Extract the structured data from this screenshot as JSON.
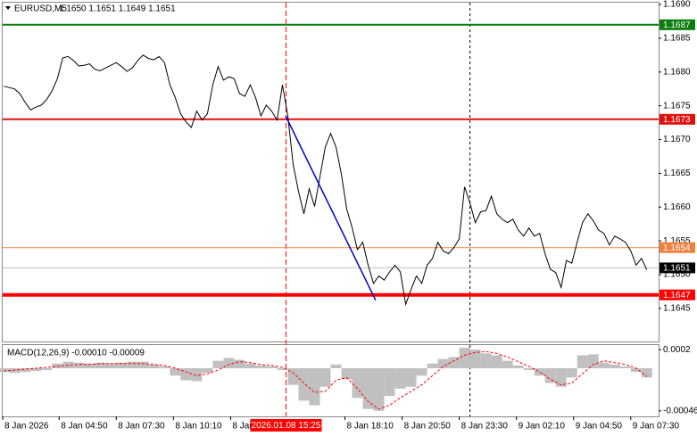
{
  "chart_data": [
    {
      "type": "line",
      "title": "EURUSD,M5",
      "quote": "1.1650 1.1651 1.1649 1.1651",
      "color": "#000000",
      "x": [
        2.25,
        2.5,
        2.75,
        3,
        3.25,
        3.5,
        3.75,
        4,
        4.25,
        4.5,
        4.75,
        5,
        5.25,
        5.5,
        5.75,
        6,
        6.25,
        6.5,
        6.75,
        7,
        7.25,
        7.5,
        7.75,
        8,
        8.25,
        8.5,
        8.75,
        9,
        9.25,
        9.5,
        9.75,
        10,
        10.25,
        10.5,
        10.75,
        11,
        11.25,
        11.5,
        11.75,
        12,
        12.25,
        12.5,
        12.75,
        13,
        13.25,
        13.5,
        13.75,
        14,
        14.25,
        14.5,
        14.75,
        15,
        15.25,
        15.5,
        15.75,
        16,
        16.25,
        16.5,
        16.75,
        17,
        17.25,
        17.5,
        17.75,
        18,
        18.25,
        18.5,
        18.75,
        19,
        19.25,
        19.5,
        19.75,
        20,
        20.25,
        20.5,
        20.75,
        21,
        21.25,
        21.5,
        21.75,
        22,
        22.25,
        22.5,
        22.75,
        23,
        23.25,
        23.5,
        23.75,
        24,
        24.25,
        24.5,
        24.75,
        25,
        25.25,
        25.5,
        25.75,
        26,
        26.25,
        26.5,
        26.75,
        27,
        27.25,
        27.5,
        27.75,
        28,
        28.25,
        28.5,
        28.75,
        29,
        29.25,
        29.5,
        29.75,
        30,
        30.25,
        30.5,
        30.75,
        31,
        31.25,
        31.5,
        31.75,
        32,
        32.25
      ],
      "values": [
        1.16779,
        1.16777,
        1.16775,
        1.16768,
        1.16755,
        1.16744,
        1.16748,
        1.16751,
        1.16759,
        1.16772,
        1.1679,
        1.16821,
        1.16823,
        1.16817,
        1.16809,
        1.1681,
        1.16812,
        1.16804,
        1.16802,
        1.16806,
        1.1681,
        1.16814,
        1.16808,
        1.16801,
        1.16806,
        1.16817,
        1.16825,
        1.1682,
        1.16818,
        1.16823,
        1.16814,
        1.16781,
        1.16762,
        1.16738,
        1.16726,
        1.16718,
        1.16742,
        1.16729,
        1.16738,
        1.16781,
        1.16808,
        1.16788,
        1.16793,
        1.1679,
        1.16768,
        1.16764,
        1.16781,
        1.16762,
        1.16735,
        1.16751,
        1.16742,
        1.16729,
        1.16781,
        1.16735,
        1.16663,
        1.16623,
        1.1659,
        1.16627,
        1.16601,
        1.16645,
        1.16689,
        1.16709,
        1.16689,
        1.16649,
        1.16597,
        1.1657,
        1.16537,
        1.16548,
        1.16514,
        1.16487,
        1.16498,
        1.16492,
        1.16504,
        1.16514,
        1.16504,
        1.16456,
        1.16478,
        1.16498,
        1.16487,
        1.16514,
        1.16524,
        1.16548,
        1.16535,
        1.16531,
        1.1654,
        1.16553,
        1.1663,
        1.16606,
        1.16577,
        1.16593,
        1.16595,
        1.16616,
        1.1659,
        1.16582,
        1.16577,
        1.16582,
        1.16566,
        1.16557,
        1.16569,
        1.16557,
        1.16561,
        1.16531,
        1.16508,
        1.16503,
        1.16481,
        1.16521,
        1.16517,
        1.16548,
        1.16577,
        1.1659,
        1.1658,
        1.16566,
        1.16561,
        1.16544,
        1.16557,
        1.16553,
        1.16548,
        1.16535,
        1.16514,
        1.16524,
        1.16507
      ],
      "xlim": [
        2.2,
        32.8
      ],
      "ylim": [
        1.16401,
        1.16904
      ],
      "yticks": [
        {
          "value": 1.169,
          "label": "1.1690"
        },
        {
          "value": 1.1685,
          "label": "1.1685"
        },
        {
          "value": 1.168,
          "label": "1.1680"
        },
        {
          "value": 1.1675,
          "label": "1.1675"
        },
        {
          "value": 1.167,
          "label": "1.1670"
        },
        {
          "value": 1.1665,
          "label": "1.1665"
        },
        {
          "value": 1.166,
          "label": "1.1660"
        },
        {
          "value": 1.1655,
          "label": "1.1655"
        },
        {
          "value": 1.165,
          "label": "1.1650"
        },
        {
          "value": 1.1645,
          "label": "1.1645"
        }
      ],
      "xticks": [
        {
          "value": 2.2,
          "label": "8 Jan 2026"
        },
        {
          "value": 4.8333,
          "label": "8 Jan 04:50"
        },
        {
          "value": 7.5,
          "label": "8 Jan 07:30"
        },
        {
          "value": 10.1667,
          "label": "8 Jan 10:10"
        },
        {
          "value": 12.8333,
          "label": "8 Jan 12:50"
        },
        {
          "value": 18.1667,
          "label": "8 Jan 18:10"
        },
        {
          "value": 20.8333,
          "label": "8 Jan 20:50"
        },
        {
          "value": 23.5,
          "label": "8 Jan 23:30"
        },
        {
          "value": 26.1667,
          "label": "9 Jan 02:10"
        },
        {
          "value": 28.8333,
          "label": "9 Jan 04:50"
        },
        {
          "value": 31.5,
          "label": "9 Jan 07:30"
        }
      ],
      "levels": [
        {
          "value": 1.1687,
          "color": "#0a7d0a",
          "style": "thick"
        },
        {
          "value": 1.1673,
          "color": "#e01010",
          "style": "thick"
        },
        {
          "value": 1.1654,
          "color": "#f08040",
          "style": "thin"
        },
        {
          "value": 1.1651,
          "color": "#000000",
          "style": "current"
        },
        {
          "value": 1.1647,
          "color": "#ff0000",
          "style": "heavy"
        }
      ],
      "trendline": {
        "x": [
          15.4,
          19.6
        ],
        "values": [
          1.16735,
          1.16462
        ],
        "color": "#0000cc"
      },
      "cursor": {
        "x": 15.4167,
        "label": "2026.01.08 15:25",
        "color": "#ff0000"
      },
      "separator_x": 24
    },
    {
      "type": "macd",
      "title": "MACD(12,26,9) -0.00010 -0.00009",
      "x": [
        2.25,
        2.75,
        3.25,
        3.75,
        4.25,
        4.75,
        5.25,
        5.75,
        6.25,
        6.75,
        7.25,
        7.75,
        8.25,
        8.75,
        9.25,
        9.75,
        10.25,
        10.75,
        11.25,
        11.75,
        12.25,
        12.75,
        13.25,
        13.75,
        14.25,
        14.75,
        15.25,
        15.75,
        16.25,
        16.75,
        17.25,
        17.75,
        18.25,
        18.75,
        19.25,
        19.75,
        20.25,
        20.75,
        21.25,
        21.75,
        22.25,
        22.75,
        23.25,
        23.75,
        24.25,
        24.75,
        25.25,
        25.75,
        26.25,
        26.75,
        27.25,
        27.75,
        28.25,
        28.75,
        29.25,
        29.75,
        30.25,
        30.75,
        31.25,
        31.75,
        32.25
      ],
      "series": [
        {
          "kind": "bar",
          "color": "#c0c0c0",
          "values": [
            -4e-05,
            -5e-05,
            -4e-05,
            -3e-05,
            -2e-05,
            5e-05,
            7e-05,
            6e-05,
            5e-05,
            6e-05,
            5e-05,
            6e-05,
            7e-05,
            7e-05,
            4e-05,
            2e-05,
            -8e-05,
            -0.00013,
            -0.00014,
            -5e-05,
            8e-05,
            0.00011,
            9e-05,
            5e-05,
            3e-05,
            2e-05,
            -2e-05,
            -0.00018,
            -0.00035,
            -0.0004,
            -0.0002,
            4e-05,
            -0.00012,
            -0.00032,
            -0.00044,
            -0.00046,
            -0.0003,
            -0.00022,
            -0.0002,
            -8e-05,
            5e-05,
            0.0001,
            0.00012,
            0.00022,
            0.0002,
            0.00016,
            0.00014,
            8e-05,
            3e-05,
            -2e-05,
            -8e-05,
            -0.00016,
            -0.0002,
            -0.0001,
            0.00014,
            0.00015,
            6e-05,
            4e-05,
            2e-05,
            -4e-05,
            -0.0001
          ]
        },
        {
          "kind": "line",
          "color": "#ff0000",
          "values": [
            -3e-05,
            -2e-05,
            -1e-05,
            0,
            1e-05,
            2e-05,
            3e-05,
            4e-05,
            4e-05,
            5e-05,
            5e-05,
            5e-05,
            5e-05,
            5e-05,
            4e-05,
            3e-05,
            0,
            -4e-05,
            -8e-05,
            -6e-05,
            -2e-05,
            4e-05,
            7e-05,
            6e-05,
            4e-05,
            3e-05,
            1e-05,
            -5e-05,
            -0.00016,
            -0.00026,
            -0.00025,
            -0.00013,
            -0.0001,
            -0.00022,
            -0.00036,
            -0.00044,
            -0.0004,
            -0.00032,
            -0.00025,
            -0.00018,
            -8e-05,
            2e-05,
            8e-05,
            0.00014,
            0.00017,
            0.00018,
            0.00016,
            0.00012,
            7e-05,
            2e-05,
            -4e-05,
            -0.00012,
            -0.00018,
            -0.00016,
            -6e-05,
            4e-05,
            8e-05,
            6e-05,
            4e-05,
            0,
            -9e-05
          ]
        }
      ],
      "xlim": [
        2.2,
        32.8
      ],
      "ylim": [
        -0.00052,
        0.00025
      ],
      "yticks": [
        0.0002,
        -0.00046
      ]
    }
  ]
}
